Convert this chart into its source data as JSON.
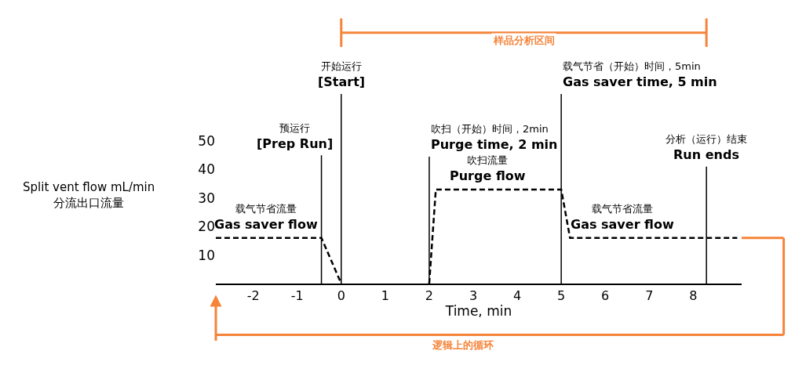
{
  "chart_data": {
    "type": "line",
    "xlabel": "Time, min",
    "ylabel": "Split vent flow mL/min\n分流出口流量",
    "x": [
      -2.85,
      -0.45,
      0,
      1,
      2,
      2.15,
      5,
      5.2,
      9.0
    ],
    "series": [
      {
        "color": "#000000",
        "values": [
          16,
          16,
          0,
          null,
          0,
          33,
          33,
          16,
          16
        ],
        "line_style": "dashed"
      }
    ],
    "marker": "none",
    "xlim": [
      -2.85,
      9.1
    ],
    "xticks": [
      -2,
      -1,
      0,
      1,
      2,
      3,
      4,
      5,
      6,
      7,
      8
    ],
    "ylim": [
      0,
      50
    ],
    "yticks": [
      10,
      20,
      30,
      40,
      50
    ],
    "ref_lines": [
      {
        "axis": "x",
        "value": -0.45,
        "label": "预运行\n[Prep Run]",
        "color": "#000000"
      },
      {
        "axis": "x",
        "value": 0,
        "label": "开始运行\n[Start]",
        "color": "#000000"
      },
      {
        "axis": "x",
        "value": 2,
        "label": "吹扫（开始）时间，2min\nPurge time, 2 min",
        "color": "#000000"
      },
      {
        "axis": "x",
        "value": 5,
        "label": "载气节省（开始）时间，5min\nGas saver time, 5 min",
        "color": "#000000"
      },
      {
        "axis": "x",
        "value": 8.3,
        "label": "分析（运行）结束\nRun ends",
        "color": "#000000"
      }
    ],
    "annotations": [
      {
        "text": "载气节省流量\nGas saver flow",
        "x": -1.5,
        "y": 16
      },
      {
        "text": "吹扫流量\nPurge flow",
        "x": 3.55,
        "y": 33
      },
      {
        "text": "载气节省流量\nGas saver flow",
        "x": 6.6,
        "y": 16
      },
      "样品分析区间",
      "逻辑上的循环"
    ]
  }
}
